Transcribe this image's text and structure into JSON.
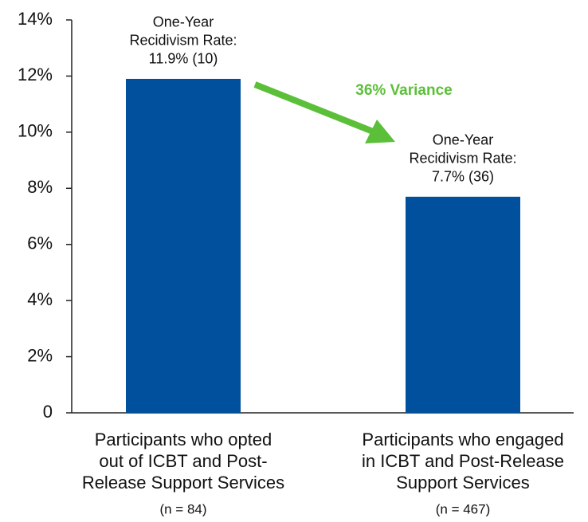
{
  "chart_data": {
    "type": "bar",
    "categories": [
      [
        "Participants who opted",
        "out of ICBT and Post-",
        "Release Support Services"
      ],
      [
        "Participants who engaged",
        "in ICBT and Post-Release",
        "Support Services"
      ]
    ],
    "category_notes": [
      "(n = 84)",
      "(n = 467)"
    ],
    "values": [
      11.9,
      7.7
    ],
    "value_labels": [
      "11.9% (10)",
      "7.7% (36)"
    ],
    "data_label_lines": [
      [
        "One-Year",
        "Recidivism Rate:"
      ],
      [
        "One-Year",
        "Recidivism Rate:"
      ]
    ],
    "color": "#00509e",
    "annotation": "36% Variance",
    "annotation_color": "#5cbf3a",
    "ylim": [
      0,
      14
    ],
    "yticks": [
      0,
      {
        "value": 2,
        "label": "2%"
      },
      {
        "value": 4,
        "label": "4%"
      },
      {
        "value": 6,
        "label": "6%"
      },
      {
        "value": 8,
        "label": "8%"
      },
      {
        "value": 10,
        "label": "10%"
      },
      {
        "value": 12,
        "label": "12%"
      },
      {
        "value": 14,
        "label": "14%"
      }
    ],
    "grid": false
  }
}
